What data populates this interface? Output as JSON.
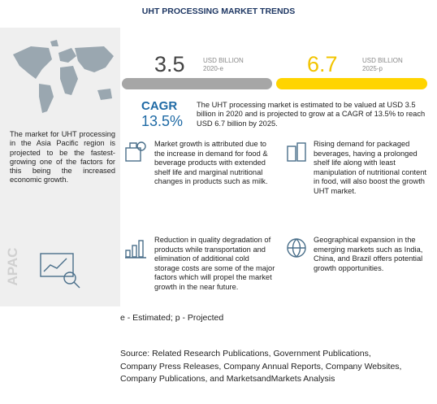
{
  "header": {
    "title": "UHT PROCESSING MARKET TRENDS"
  },
  "side": {
    "text": "The market for UHT processing in the Asia Pacific region is projected to be the fastest-growing one of the factors for this being the increased economic growth.",
    "region": "APAC"
  },
  "metrics": [
    {
      "value": "3.5",
      "unit": "USD BILLION",
      "year": "2020-e"
    },
    {
      "value": "6.7",
      "unit": "USD BILLION",
      "year": "2025-p"
    }
  ],
  "cagr": {
    "label": "CAGR",
    "value": "13.5%",
    "text": "The UHT processing market is estimated to be valued at USD 3.5 billion in 2020 and is projected to grow at a CAGR of 13.5% to reach USD 6.7 billion by 2025."
  },
  "points": [
    "Market growth is attributed due to the increase in demand for food & beverage products with extended shelf life and marginal nutritional changes in products such as milk.",
    "Rising demand for packaged beverages, having a prolonged shelf life along with least manipulation of nutritional content in food, will also boost the growth UHT market.",
    "Reduction in quality degradation of products while transportation and elimination of additional cold storage costs are some of the major factors which will propel the market growth in the near future.",
    "Geographical expansion in the emerging markets such as India, China, and Brazil offers potential growth opportunities."
  ],
  "note": "e - Estimated; p - Projected",
  "source": [
    "Source: Related Research Publications, Government Publications,",
    "Company Press Releases, Company Annual Reports, Company Websites,",
    "Company Publications, and MarketsandMarkets Analysis"
  ]
}
